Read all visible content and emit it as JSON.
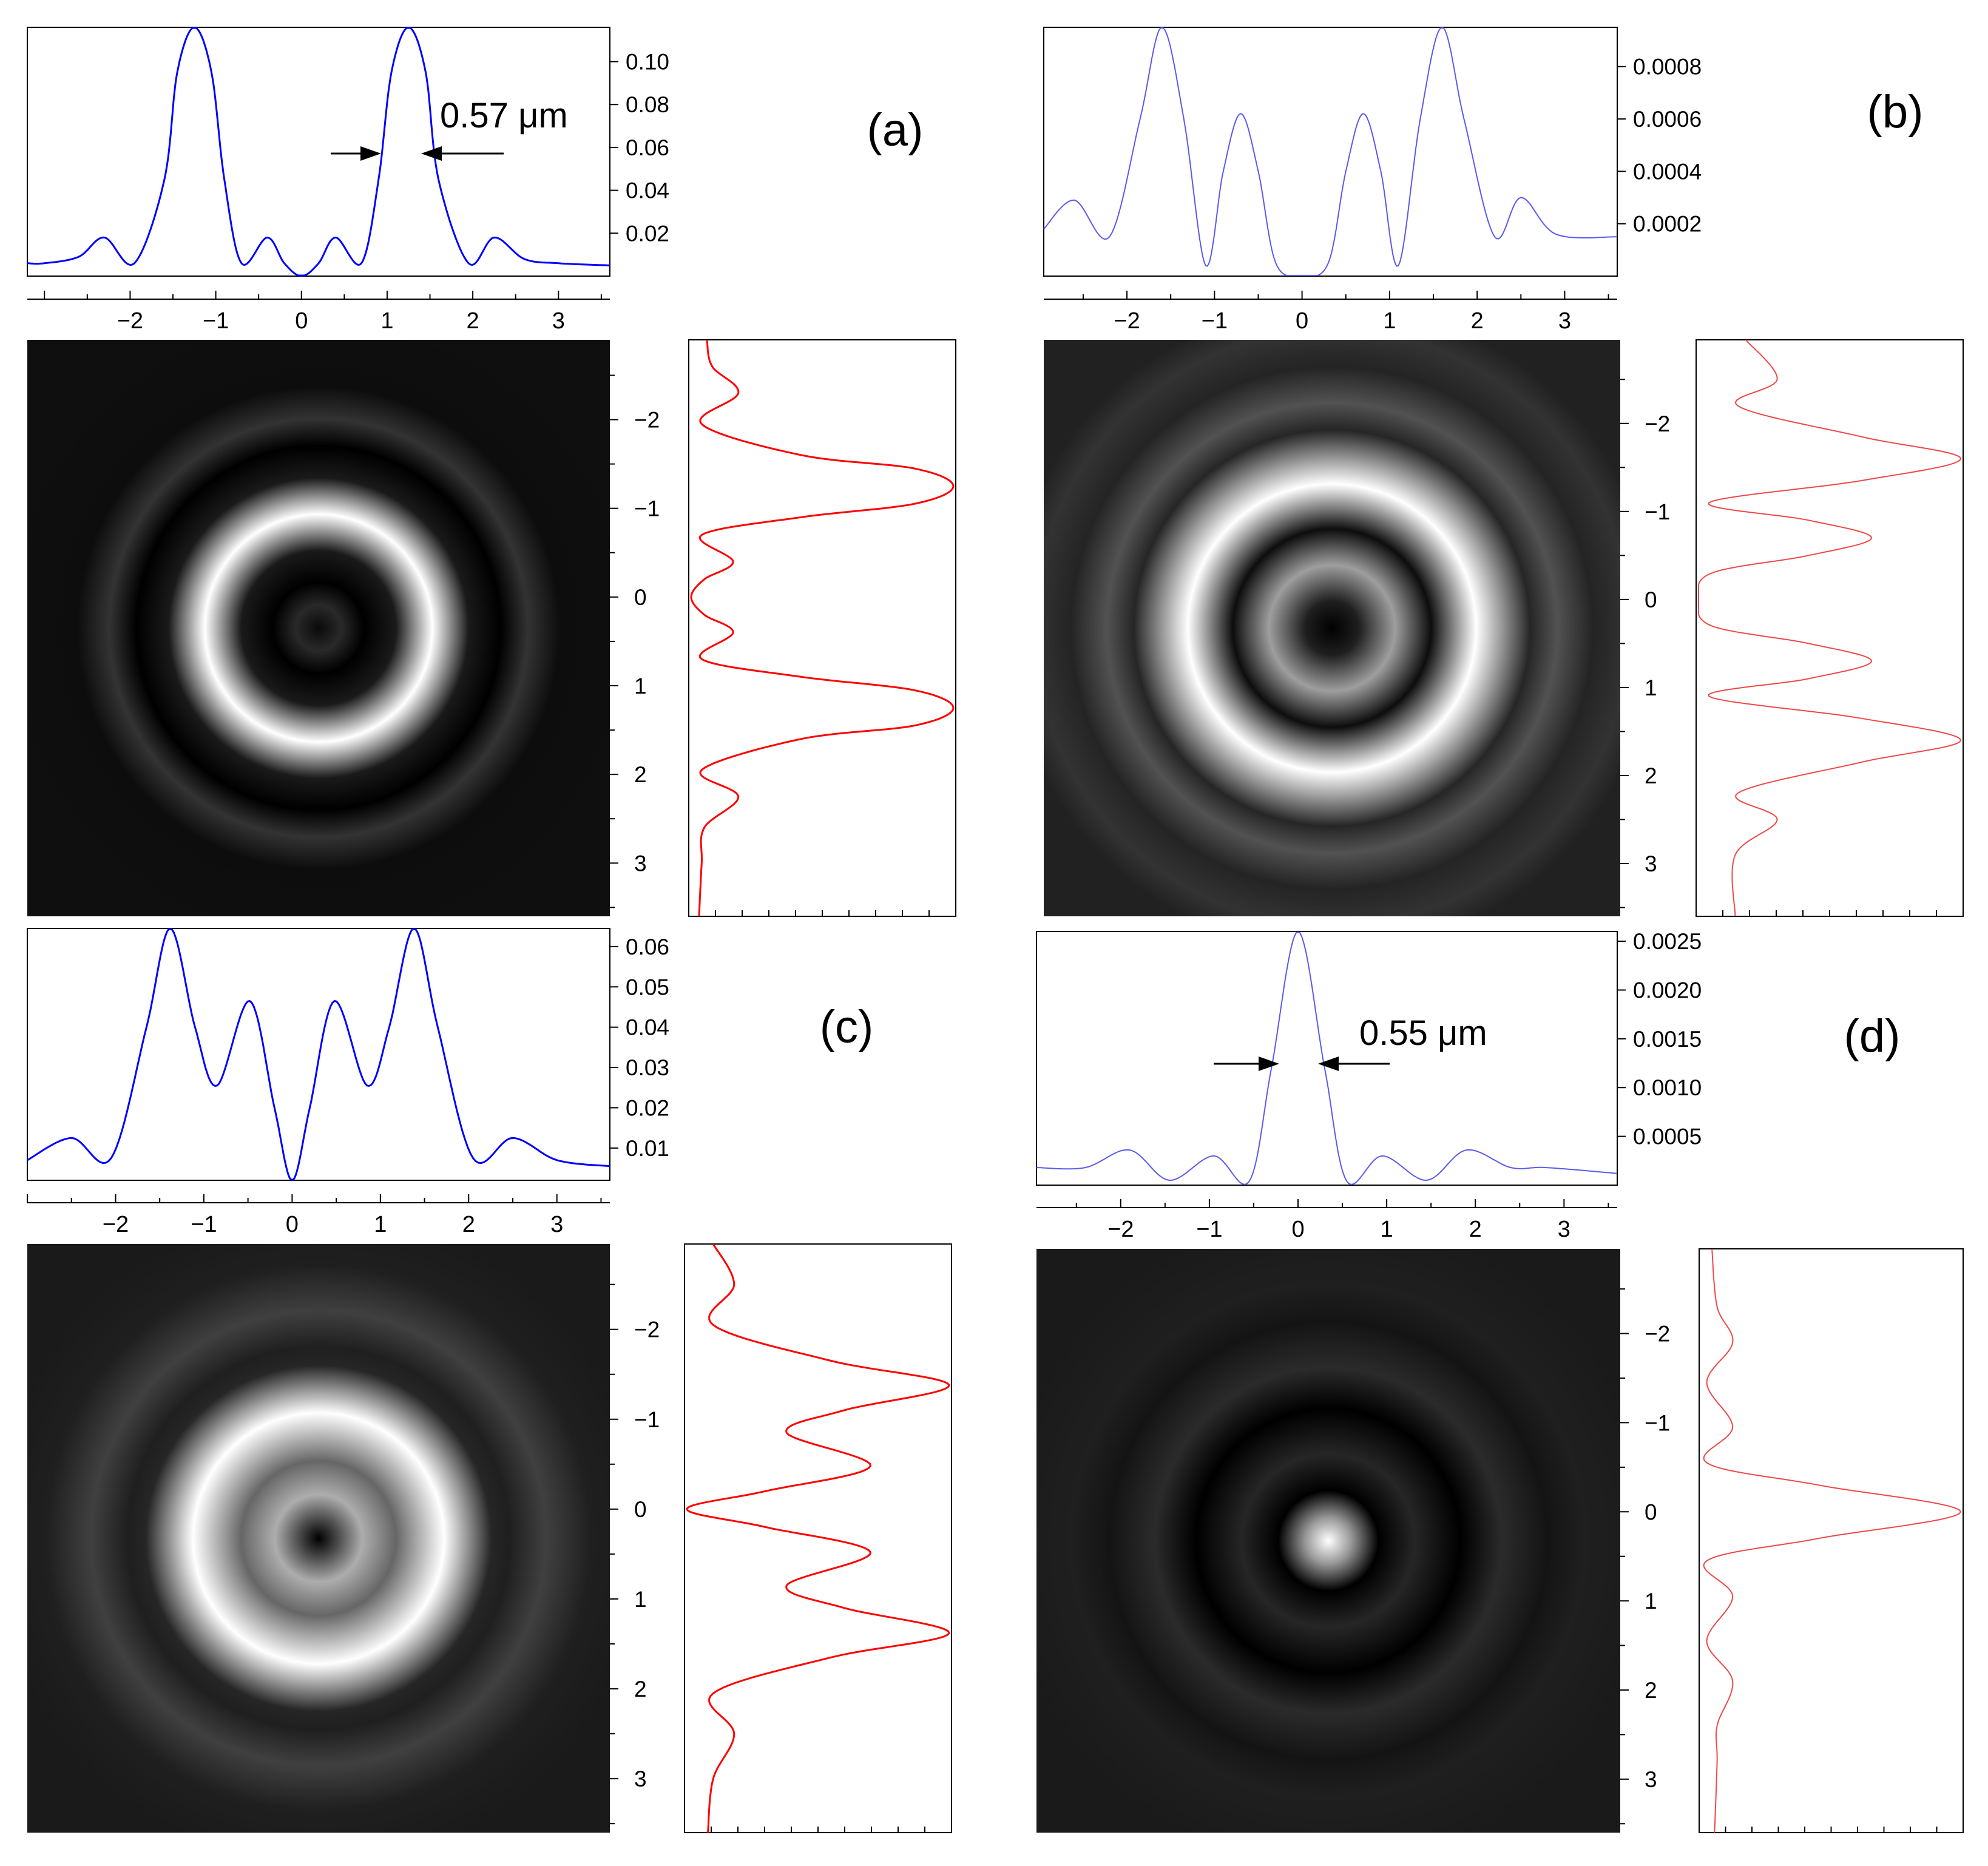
{
  "figure": {
    "annotations": {
      "a": {
        "width_label": "0.57 μm"
      },
      "d": {
        "width_label": "0.55 μm"
      }
    }
  },
  "colors": {
    "profile_strong": "#0000ff",
    "profile_light": "#5a5af0",
    "cross_strong": "#ff0000",
    "cross_light": "#f04848",
    "frame": "#000000"
  },
  "chart_data": [
    {
      "id": "a",
      "type": "line",
      "panel_label": "(a)",
      "title": "",
      "xlabel": "",
      "ylabel": "",
      "xlim": [
        -3.2,
        3.6
      ],
      "ylim": [
        0,
        0.116
      ],
      "x_ticks": [
        -2,
        -1,
        0,
        1,
        2,
        3
      ],
      "y_ticks": [
        0.02,
        0.04,
        0.06,
        0.08,
        0.1
      ],
      "y_tick_labels": [
        "0.02",
        "0.04",
        "0.06",
        "0.08",
        "0.10"
      ],
      "x": [
        -3.2,
        -3.0,
        -2.6,
        -2.3,
        -1.95,
        -1.6,
        -1.45,
        -1.25,
        -1.05,
        -0.9,
        -0.7,
        -0.4,
        -0.2,
        0.0,
        0.2,
        0.4,
        0.7,
        0.9,
        1.05,
        1.25,
        1.45,
        1.6,
        1.95,
        2.25,
        2.6,
        3.0,
        3.6
      ],
      "values": [
        0.006,
        0.006,
        0.009,
        0.018,
        0.006,
        0.045,
        0.095,
        0.116,
        0.095,
        0.045,
        0.006,
        0.018,
        0.006,
        0.0,
        0.006,
        0.018,
        0.006,
        0.045,
        0.095,
        0.116,
        0.095,
        0.045,
        0.006,
        0.018,
        0.008,
        0.006,
        0.005
      ],
      "image": {
        "type": "heatmap",
        "rings": [
          [
            0.0,
            0.04
          ],
          [
            0.25,
            0.16
          ],
          [
            0.5,
            0.0
          ],
          [
            0.85,
            0.1
          ],
          [
            1.25,
            1.0
          ],
          [
            1.65,
            0.1
          ],
          [
            2.0,
            0.0
          ],
          [
            2.3,
            0.2
          ],
          [
            2.65,
            0.05
          ],
          [
            3.5,
            0.06
          ]
        ]
      },
      "cross_section": {
        "y_ticks": [
          -2,
          -1,
          0,
          1,
          2,
          3
        ],
        "ylim": [
          -2.9,
          3.6
        ],
        "y": [
          -2.9,
          -2.6,
          -2.3,
          -1.95,
          -1.6,
          -1.45,
          -1.25,
          -1.05,
          -0.9,
          -0.7,
          -0.4,
          -0.2,
          0.0,
          0.2,
          0.4,
          0.7,
          0.9,
          1.05,
          1.25,
          1.45,
          1.6,
          1.95,
          2.25,
          2.6,
          3.0,
          3.6
        ],
        "values": [
          0.06,
          0.08,
          0.18,
          0.04,
          0.42,
          0.85,
          1.0,
          0.85,
          0.42,
          0.04,
          0.16,
          0.05,
          0.0,
          0.05,
          0.16,
          0.04,
          0.42,
          0.85,
          1.0,
          0.85,
          0.42,
          0.04,
          0.18,
          0.05,
          0.04,
          0.03
        ]
      }
    },
    {
      "id": "b",
      "type": "line",
      "panel_label": "(b)",
      "title": "",
      "xlabel": "",
      "ylabel": "",
      "xlim": [
        -2.95,
        3.6
      ],
      "ylim": [
        0,
        0.00095
      ],
      "x_ticks": [
        -2,
        -1,
        0,
        1,
        2,
        3
      ],
      "y_ticks": [
        0.0002,
        0.0004,
        0.0006,
        0.0008
      ],
      "y_tick_labels": [
        "0.0002",
        "0.0004",
        "0.0006",
        "0.0008"
      ],
      "x": [
        -2.95,
        -2.6,
        -2.2,
        -1.85,
        -1.6,
        -1.35,
        -1.1,
        -0.9,
        -0.7,
        -0.5,
        -0.3,
        0.0,
        0.3,
        0.5,
        0.7,
        0.9,
        1.1,
        1.35,
        1.6,
        1.85,
        2.2,
        2.5,
        2.9,
        3.6
      ],
      "values": [
        0.00018,
        0.00029,
        0.00015,
        0.0006,
        0.00095,
        0.0006,
        4e-05,
        0.0004,
        0.00062,
        0.0004,
        5e-05,
        0.0,
        5e-05,
        0.0004,
        0.00062,
        0.0004,
        4e-05,
        0.0006,
        0.00095,
        0.0006,
        0.00015,
        0.0003,
        0.00016,
        0.00015
      ],
      "image": {
        "type": "heatmap",
        "rings": [
          [
            0.0,
            0.0
          ],
          [
            0.3,
            0.12
          ],
          [
            0.7,
            0.62
          ],
          [
            1.1,
            0.05
          ],
          [
            1.6,
            1.0
          ],
          [
            2.2,
            0.15
          ],
          [
            2.5,
            0.32
          ],
          [
            2.9,
            0.14
          ],
          [
            3.3,
            0.2
          ],
          [
            3.6,
            0.13
          ]
        ]
      },
      "cross_section": {
        "y_ticks": [
          -2,
          -1,
          0,
          1,
          2,
          3
        ],
        "ylim": [
          -2.95,
          3.6
        ],
        "y": [
          -2.95,
          -2.5,
          -2.2,
          -1.85,
          -1.6,
          -1.35,
          -1.1,
          -0.9,
          -0.7,
          -0.5,
          -0.3,
          0.0,
          0.3,
          0.5,
          0.7,
          0.9,
          1.1,
          1.35,
          1.6,
          1.85,
          2.2,
          2.5,
          2.9,
          3.6
        ],
        "values": [
          0.18,
          0.3,
          0.15,
          0.62,
          1.0,
          0.62,
          0.04,
          0.42,
          0.66,
          0.42,
          0.05,
          0.0,
          0.05,
          0.42,
          0.66,
          0.42,
          0.04,
          0.62,
          1.0,
          0.62,
          0.15,
          0.3,
          0.14,
          0.14
        ]
      }
    },
    {
      "id": "c",
      "type": "line",
      "panel_label": "(c)",
      "title": "",
      "xlabel": "",
      "ylabel": "",
      "xlim": [
        -3.0,
        3.6
      ],
      "ylim": [
        0.002,
        0.0645
      ],
      "x_ticks": [
        -2,
        -1,
        0,
        1,
        2,
        3
      ],
      "y_ticks": [
        0.01,
        0.02,
        0.03,
        0.04,
        0.05,
        0.06
      ],
      "y_tick_labels": [
        "0.01",
        "0.02",
        "0.03",
        "0.04",
        "0.05",
        "0.06"
      ],
      "x": [
        -3.0,
        -2.5,
        -2.05,
        -1.65,
        -1.38,
        -1.1,
        -0.85,
        -0.48,
        -0.2,
        0.0,
        0.2,
        0.48,
        0.85,
        1.1,
        1.38,
        1.65,
        2.05,
        2.5,
        3.0,
        3.6
      ],
      "values": [
        0.007,
        0.0125,
        0.0075,
        0.04,
        0.0645,
        0.04,
        0.0255,
        0.0465,
        0.02,
        0.002,
        0.02,
        0.0465,
        0.0255,
        0.04,
        0.0645,
        0.04,
        0.0075,
        0.0125,
        0.007,
        0.0055
      ],
      "image": {
        "type": "heatmap",
        "rings": [
          [
            0.0,
            0.0
          ],
          [
            0.22,
            0.3
          ],
          [
            0.48,
            0.68
          ],
          [
            0.85,
            0.4
          ],
          [
            1.38,
            1.0
          ],
          [
            1.9,
            0.15
          ],
          [
            2.1,
            0.12
          ],
          [
            2.5,
            0.25
          ],
          [
            3.0,
            0.12
          ],
          [
            3.6,
            0.1
          ]
        ]
      },
      "cross_section": {
        "y_ticks": [
          -2,
          -1,
          0,
          1,
          2,
          3
        ],
        "ylim": [
          -2.95,
          3.6
        ],
        "y": [
          -2.95,
          -2.5,
          -2.05,
          -1.65,
          -1.38,
          -1.1,
          -0.85,
          -0.48,
          -0.2,
          0.0,
          0.2,
          0.48,
          0.85,
          1.1,
          1.38,
          1.65,
          2.05,
          2.5,
          3.0,
          3.6
        ],
        "values": [
          0.1,
          0.18,
          0.1,
          0.55,
          1.0,
          0.6,
          0.38,
          0.7,
          0.3,
          0.0,
          0.3,
          0.7,
          0.38,
          0.6,
          1.0,
          0.55,
          0.1,
          0.18,
          0.1,
          0.08
        ]
      }
    },
    {
      "id": "d",
      "type": "line",
      "panel_label": "(d)",
      "title": "",
      "xlabel": "",
      "ylabel": "",
      "xlim": [
        -2.95,
        3.6
      ],
      "ylim": [
        0,
        0.0026
      ],
      "x_ticks": [
        -2,
        -1,
        0,
        1,
        2,
        3
      ],
      "y_ticks": [
        0.0005,
        0.001,
        0.0015,
        0.002,
        0.0025
      ],
      "y_tick_labels": [
        "0.0005",
        "0.0010",
        "0.0015",
        "0.0020",
        "0.0025"
      ],
      "x": [
        -2.95,
        -2.4,
        -1.9,
        -1.45,
        -0.95,
        -0.55,
        -0.3,
        0.0,
        0.3,
        0.55,
        0.95,
        1.45,
        1.9,
        2.4,
        2.8,
        3.6
      ],
      "values": [
        0.00018,
        0.00018,
        0.00036,
        5e-05,
        0.0003,
        4e-05,
        0.0012,
        0.0026,
        0.0012,
        4e-05,
        0.0003,
        5e-05,
        0.00036,
        0.00018,
        0.00018,
        0.00012
      ],
      "image": {
        "type": "heatmap",
        "rings": [
          [
            0.0,
            1.0
          ],
          [
            0.25,
            0.6
          ],
          [
            0.55,
            0.0
          ],
          [
            0.95,
            0.15
          ],
          [
            1.45,
            0.0
          ],
          [
            1.9,
            0.17
          ],
          [
            2.4,
            0.08
          ],
          [
            2.8,
            0.12
          ],
          [
            3.6,
            0.1
          ]
        ]
      },
      "cross_section": {
        "y_ticks": [
          -2,
          -1,
          0,
          1,
          2,
          3
        ],
        "ylim": [
          -2.95,
          3.6
        ],
        "y": [
          -2.95,
          -2.3,
          -1.9,
          -1.45,
          -0.95,
          -0.55,
          -0.3,
          0.0,
          0.3,
          0.55,
          0.95,
          1.45,
          1.9,
          2.4,
          2.8,
          3.6
        ],
        "values": [
          0.04,
          0.06,
          0.12,
          0.02,
          0.12,
          0.02,
          0.45,
          1.0,
          0.45,
          0.02,
          0.12,
          0.02,
          0.12,
          0.06,
          0.06,
          0.05
        ]
      }
    }
  ]
}
